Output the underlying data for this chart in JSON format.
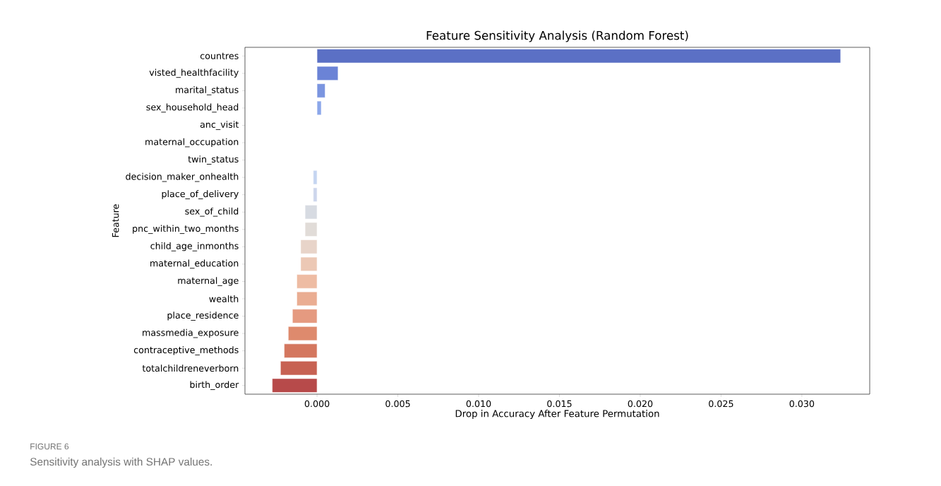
{
  "chart_data": {
    "type": "bar",
    "orientation": "horizontal",
    "title": "Feature Sensitivity Analysis (Random Forest)",
    "xlabel": "Drop in Accuracy After Feature Permutation",
    "ylabel": "Feature",
    "categories": [
      "countres",
      "visted_healthfacility",
      "marital_status",
      "sex_household_head",
      "anc_visit",
      "maternal_occupation",
      "twin_status",
      "decision_maker_onhealth",
      "place_of_delivery",
      "sex_of_child",
      "pnc_within_two_months",
      "child_age_inmonths",
      "maternal_education",
      "maternal_age",
      "wealth",
      "place_residence",
      "massmedia_exposure",
      "contraceptive_methods",
      "totalchildreneverborn",
      "birth_order"
    ],
    "values": [
      0.0324,
      0.0013,
      0.0005,
      0.00026,
      0,
      0,
      0,
      -0.00023,
      -0.00023,
      -0.00074,
      -0.00074,
      -0.00101,
      -0.00101,
      -0.00125,
      -0.00125,
      -0.00152,
      -0.00178,
      -0.00203,
      -0.00226,
      -0.00277
    ],
    "colors": [
      "#5b70c5",
      "#6b83d6",
      "#7b95e0",
      "#8ca7ea",
      "#9db9f0",
      "#aec8f5",
      "#bdd3f4",
      "#c5d5f1",
      "#cdd6ec",
      "#d7dbe2",
      "#e1dcd8",
      "#e8d4c9",
      "#ecc8b5",
      "#eebca3",
      "#eaad92",
      "#e59a80",
      "#de8a6d",
      "#d4775f",
      "#c76253",
      "#b74a4a"
    ],
    "xlim": [
      -0.00446,
      0.0342
    ],
    "xticks": [
      {
        "value": 0,
        "label": "0.000"
      },
      {
        "value": 0.005,
        "label": "0.005"
      },
      {
        "value": 0.01,
        "label": "0.010"
      },
      {
        "value": 0.015,
        "label": "0.015"
      },
      {
        "value": 0.02,
        "label": "0.020"
      },
      {
        "value": 0.025,
        "label": "0.025"
      },
      {
        "value": 0.03,
        "label": "0.030"
      }
    ],
    "annotations": [
      "FIGURE 6",
      "Sensitivity analysis with SHAP values."
    ]
  }
}
